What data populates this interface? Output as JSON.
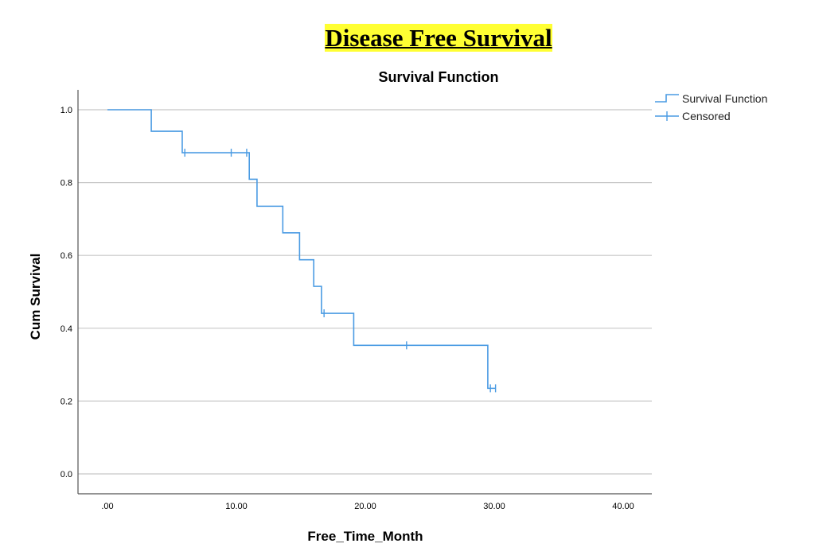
{
  "page": {
    "heading": "Disease Free Survival"
  },
  "chart_data": {
    "type": "line",
    "title": "Survival Function",
    "xlabel": "Free_Time_Month",
    "ylabel": "Cum Survival",
    "xlim": [
      0,
      40
    ],
    "ylim": [
      0,
      1.0
    ],
    "x_ticks": [
      0,
      10,
      20,
      30,
      40
    ],
    "x_tick_labels": [
      ".00",
      "10.00",
      "20.00",
      "30.00",
      "40.00"
    ],
    "y_ticks": [
      0,
      0.2,
      0.4,
      0.6,
      0.8,
      1.0
    ],
    "y_tick_labels": [
      "0.0",
      "0.2",
      "0.4",
      "0.6",
      "0.8",
      "1.0"
    ],
    "grid": "horizontal",
    "legend_position": "top-right",
    "line_color": "#4a9be3",
    "series": [
      {
        "name": "Survival Function",
        "step": true,
        "x": [
          0,
          3.4,
          5.8,
          11.0,
          11.6,
          13.6,
          14.9,
          16.0,
          16.6,
          19.1,
          29.5,
          30.1
        ],
        "y": [
          1.0,
          0.941,
          0.882,
          0.809,
          0.735,
          0.662,
          0.588,
          0.515,
          0.441,
          0.353,
          0.235,
          0.235
        ]
      },
      {
        "name": "Censored",
        "x": [
          6.0,
          9.6,
          10.8,
          16.8,
          23.2,
          29.7,
          30.1
        ],
        "y": [
          0.882,
          0.882,
          0.882,
          0.441,
          0.353,
          0.235,
          0.235
        ]
      }
    ]
  }
}
